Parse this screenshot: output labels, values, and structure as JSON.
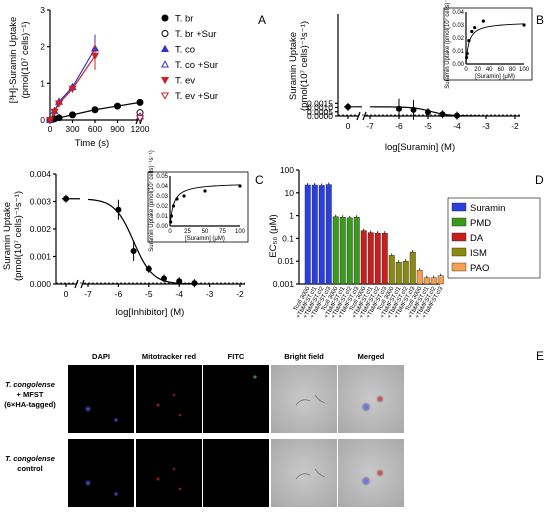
{
  "panels": {
    "a": "A",
    "b": "B",
    "c": "C",
    "d": "D",
    "e": "E"
  },
  "chart_data": [
    {
      "type": "line",
      "panel": "A",
      "xlabel": "Time (s)",
      "ylabel_main": "[³H]-Suramin Uptake",
      "ylabel_units": "(pmol(10⁷ cells)⁻¹)",
      "xlim": [
        0,
        1200
      ],
      "ylim": [
        0,
        3
      ],
      "xticks": [
        "0",
        "300",
        "600",
        "900",
        "1200"
      ],
      "yticks": [
        "0",
        "1",
        "2",
        "3"
      ],
      "series": [
        {
          "name": "T. br",
          "color": "#000000",
          "marker": "circle-filled",
          "x": [
            0,
            60,
            120,
            300,
            600,
            900,
            1200
          ],
          "y": [
            0,
            0.03,
            0.06,
            0.14,
            0.28,
            0.38,
            0.48
          ]
        },
        {
          "name": "T. br +Sur",
          "color": "#000000",
          "marker": "circle-open",
          "x": [
            1200
          ],
          "y": [
            0.2
          ]
        },
        {
          "name": "T. co",
          "color": "#3333cc",
          "marker": "triangle-up-filled",
          "x": [
            0,
            60,
            120,
            300,
            600
          ],
          "y": [
            0,
            0.25,
            0.5,
            0.9,
            1.95
          ]
        },
        {
          "name": "T. co +Sur",
          "color": "#3333cc",
          "marker": "triangle-up-open",
          "x": [
            1200
          ],
          "y": [
            0.1
          ]
        },
        {
          "name": "T. ev",
          "color": "#cc2222",
          "marker": "triangle-down-filled",
          "x": [
            0,
            60,
            120,
            300,
            600
          ],
          "y": [
            0,
            0.22,
            0.45,
            0.85,
            1.75
          ]
        },
        {
          "name": "T. ev +Sur",
          "color": "#cc2222",
          "marker": "triangle-down-open",
          "x": [
            1200
          ],
          "y": [
            0.05
          ]
        }
      ]
    },
    {
      "type": "scatter",
      "panel": "B",
      "xlabel": "log[Suramin] (M)",
      "ylabel_main": "Suramin Uptake",
      "ylabel_units": "(pmol(10⁷ cells)⁻¹s⁻¹)",
      "ylim": [
        0,
        0.012
      ],
      "xticks": [
        "0",
        "-7",
        "-6",
        "-5",
        "-4",
        "-3",
        "-2"
      ],
      "yticks": [
        "0.0000",
        "0.0005",
        "0.0010",
        "0.0015"
      ],
      "points": [
        {
          "x": "0",
          "y": 0.00108
        },
        {
          "x": -6,
          "y": 0.00085
        },
        {
          "x": -5.5,
          "y": 0.00072
        },
        {
          "x": -5,
          "y": 0.00045
        },
        {
          "x": -4.5,
          "y": 0.0002
        },
        {
          "x": -4,
          "y": 5e-05
        }
      ],
      "inset": {
        "xlabel": "[Suramin] (μM)",
        "ylabel": "Suramin Uptake (pmol(10⁷ cells)⁻¹s⁻¹)",
        "xticks": [
          "0",
          "20",
          "40",
          "60",
          "80",
          "100"
        ],
        "yticks": [
          "0.00",
          "0.01",
          "0.02",
          "0.03",
          "0.04"
        ],
        "points": [
          [
            1,
            0.005
          ],
          [
            2,
            0.008
          ],
          [
            5,
            0.018
          ],
          [
            10,
            0.025
          ],
          [
            15,
            0.028
          ],
          [
            30,
            0.033
          ],
          [
            100,
            0.03
          ]
        ]
      }
    },
    {
      "type": "scatter",
      "panel": "C",
      "xlabel": "log[Inhibitor] (M)",
      "ylabel_main": "Suramin Uptake",
      "ylabel_units": "(pmol(10⁷ cells)⁻¹s⁻¹)",
      "ylim": [
        0,
        0.004
      ],
      "xticks": [
        "0",
        "-7",
        "-6",
        "-5",
        "-4",
        "-3",
        "-2"
      ],
      "yticks": [
        "0.000",
        "0.001",
        "0.002",
        "0.003",
        "0.004"
      ],
      "points": [
        {
          "x": "0",
          "y": 0.0031
        },
        {
          "x": -6,
          "y": 0.0027
        },
        {
          "x": -5.5,
          "y": 0.0012
        },
        {
          "x": -5,
          "y": 0.00055
        },
        {
          "x": -4.5,
          "y": 0.0002
        },
        {
          "x": -4,
          "y": 0.0001
        },
        {
          "x": -3.5,
          "y": 3e-05
        }
      ],
      "inset": {
        "xlabel": "[Suramin] (μM)",
        "ylabel": "Suramin Uptake (pmol(10⁷ cells)⁻¹s⁻¹)",
        "xticks": [
          "0",
          "25",
          "50",
          "75",
          "100"
        ],
        "yticks": [
          "0.00",
          "0.01",
          "0.02",
          "0.03",
          "0.04",
          "0.05"
        ],
        "points": [
          [
            1,
            0.004
          ],
          [
            2,
            0.01
          ],
          [
            5,
            0.02
          ],
          [
            10,
            0.027
          ],
          [
            20,
            0.03
          ],
          [
            50,
            0.035
          ],
          [
            100,
            0.04
          ]
        ]
      }
    },
    {
      "type": "bar",
      "panel": "D",
      "ylabel": "EC₅₀ (μM)",
      "yscale": "log",
      "yticks": [
        "0.001",
        "0.01",
        "0.1",
        "1",
        "10",
        "100"
      ],
      "categories": [
        "Tcoll 3000",
        "+TbMFST.cl1",
        "+TbMFST.cl2",
        "+TbMFST.cl3"
      ],
      "series": [
        {
          "name": "Suramin",
          "color": "#2a3fe0",
          "values": [
            22,
            22,
            21,
            23
          ]
        },
        {
          "name": "PMD",
          "color": "#3a9a1c",
          "values": [
            0.9,
            0.85,
            0.8,
            0.85
          ]
        },
        {
          "name": "DA",
          "color": "#c81e1e",
          "values": [
            0.22,
            0.18,
            0.17,
            0.17
          ]
        },
        {
          "name": "ISM",
          "color": "#8a8a10",
          "values": [
            0.018,
            0.009,
            0.01,
            0.025
          ]
        },
        {
          "name": "PAO",
          "color": "#f5a050",
          "values": [
            0.004,
            0.0019,
            0.0019,
            0.0023
          ]
        }
      ]
    }
  ],
  "microscopy": {
    "columns": [
      "DAPI",
      "Mitotracker red",
      "FITC",
      "Bright field",
      "Merged"
    ],
    "rows": [
      {
        "label_italic": "T. congolense",
        "label_lines": [
          "+ MFST",
          "(6×HA-tagged)"
        ]
      },
      {
        "label_italic": "T. congolense",
        "label_lines": [
          "control"
        ]
      }
    ]
  }
}
